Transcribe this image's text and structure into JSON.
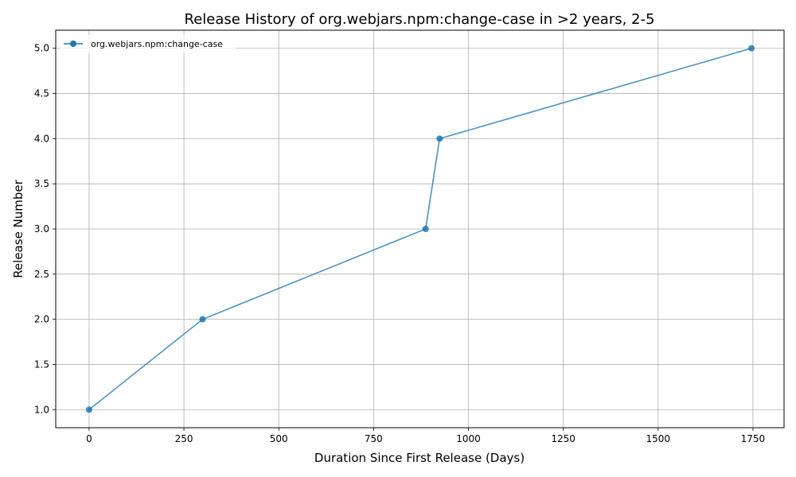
{
  "chart_data": {
    "type": "line",
    "title": "Release History of org.webjars.npm:change-case in >2 years, 2-5",
    "xlabel": "Duration Since First Release (Days)",
    "ylabel": "Release Number",
    "xlim": [
      -88,
      1832
    ],
    "ylim": [
      0.8,
      5.2
    ],
    "xticks": [
      0,
      250,
      500,
      750,
      1000,
      1250,
      1500,
      1750
    ],
    "yticks": [
      1.0,
      1.5,
      2.0,
      2.5,
      3.0,
      3.5,
      4.0,
      4.5,
      5.0
    ],
    "ytick_labels": [
      "1.0",
      "1.5",
      "2.0",
      "2.5",
      "3.0",
      "3.5",
      "4.0",
      "4.5",
      "5.0"
    ],
    "grid": true,
    "legend_position": "top-left",
    "series": [
      {
        "name": "org.webjars.npm:change-case",
        "color": "#1f77b4",
        "marker": "circle",
        "x": [
          0,
          299,
          887,
          924,
          1746
        ],
        "y": [
          1,
          2,
          3,
          4,
          5
        ]
      }
    ]
  }
}
